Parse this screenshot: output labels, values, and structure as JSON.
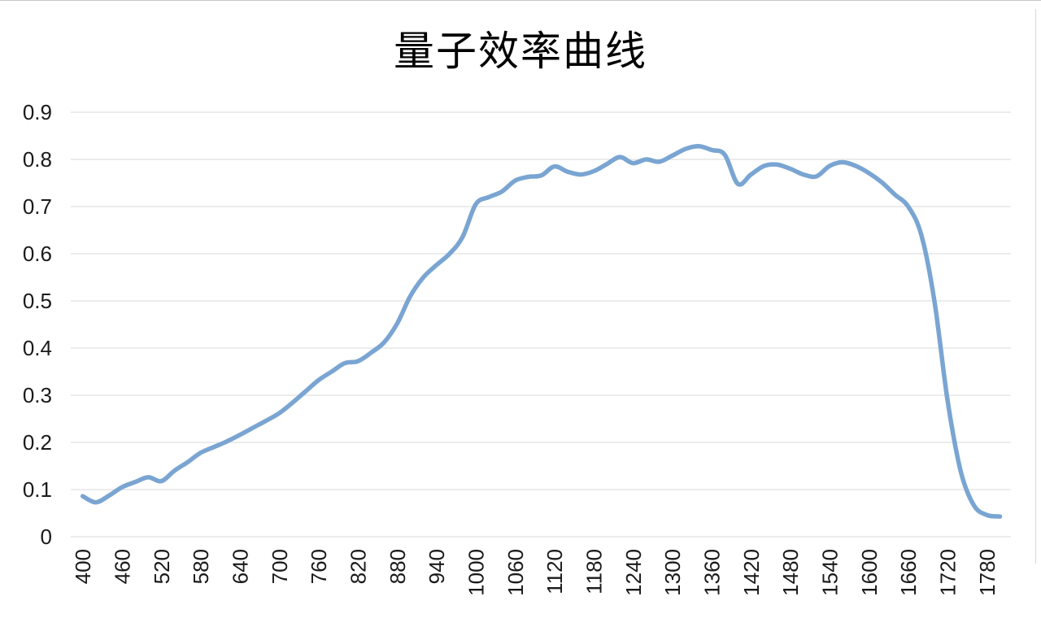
{
  "title": "量子效率曲线",
  "chart_data": {
    "type": "line",
    "title": "量子效率曲线",
    "xlabel": "",
    "ylabel": "",
    "legend": "none",
    "grid": "horizontal",
    "smooth": true,
    "line_color": "#7AA5D2",
    "grid_color": "#D8D8D8",
    "xlim": [
      400,
      1800
    ],
    "ylim": [
      0,
      0.9
    ],
    "xticks": [
      400,
      460,
      520,
      580,
      640,
      700,
      760,
      820,
      880,
      940,
      1000,
      1060,
      1120,
      1180,
      1240,
      1300,
      1360,
      1420,
      1480,
      1540,
      1600,
      1660,
      1720,
      1780
    ],
    "yticks": [
      {
        "value": 0.9,
        "label": "0.9"
      },
      {
        "value": 0.8,
        "label": "0.8"
      },
      {
        "value": 0.7,
        "label": "0.7"
      },
      {
        "value": 0.6,
        "label": "0.6"
      },
      {
        "value": 0.5,
        "label": "0.5"
      },
      {
        "value": 0.4,
        "label": "0.4"
      },
      {
        "value": 0.3,
        "label": "0.3"
      },
      {
        "value": 0.2,
        "label": "0.2"
      },
      {
        "value": 0.1,
        "label": "0.1"
      },
      {
        "value": 0.0,
        "label": "0"
      }
    ],
    "x": [
      400,
      420,
      440,
      460,
      480,
      500,
      520,
      540,
      560,
      580,
      600,
      620,
      640,
      660,
      680,
      700,
      720,
      740,
      760,
      780,
      800,
      820,
      840,
      860,
      880,
      900,
      920,
      940,
      960,
      980,
      1000,
      1020,
      1040,
      1060,
      1080,
      1100,
      1120,
      1140,
      1160,
      1180,
      1200,
      1220,
      1240,
      1260,
      1280,
      1300,
      1320,
      1340,
      1360,
      1380,
      1400,
      1420,
      1440,
      1460,
      1480,
      1500,
      1520,
      1540,
      1560,
      1580,
      1600,
      1620,
      1640,
      1660,
      1680,
      1700,
      1720,
      1740,
      1760,
      1780,
      1800
    ],
    "values": [
      0.086,
      0.073,
      0.087,
      0.105,
      0.116,
      0.126,
      0.118,
      0.14,
      0.158,
      0.178,
      0.19,
      0.202,
      0.216,
      0.231,
      0.246,
      0.262,
      0.284,
      0.308,
      0.332,
      0.35,
      0.368,
      0.372,
      0.39,
      0.412,
      0.452,
      0.51,
      0.55,
      0.576,
      0.6,
      0.636,
      0.705,
      0.72,
      0.732,
      0.755,
      0.763,
      0.766,
      0.785,
      0.774,
      0.768,
      0.775,
      0.79,
      0.805,
      0.792,
      0.8,
      0.795,
      0.808,
      0.822,
      0.828,
      0.82,
      0.81,
      0.748,
      0.768,
      0.786,
      0.789,
      0.78,
      0.768,
      0.764,
      0.786,
      0.794,
      0.786,
      0.771,
      0.751,
      0.725,
      0.7,
      0.64,
      0.5,
      0.29,
      0.14,
      0.067,
      0.046,
      0.043
    ]
  }
}
